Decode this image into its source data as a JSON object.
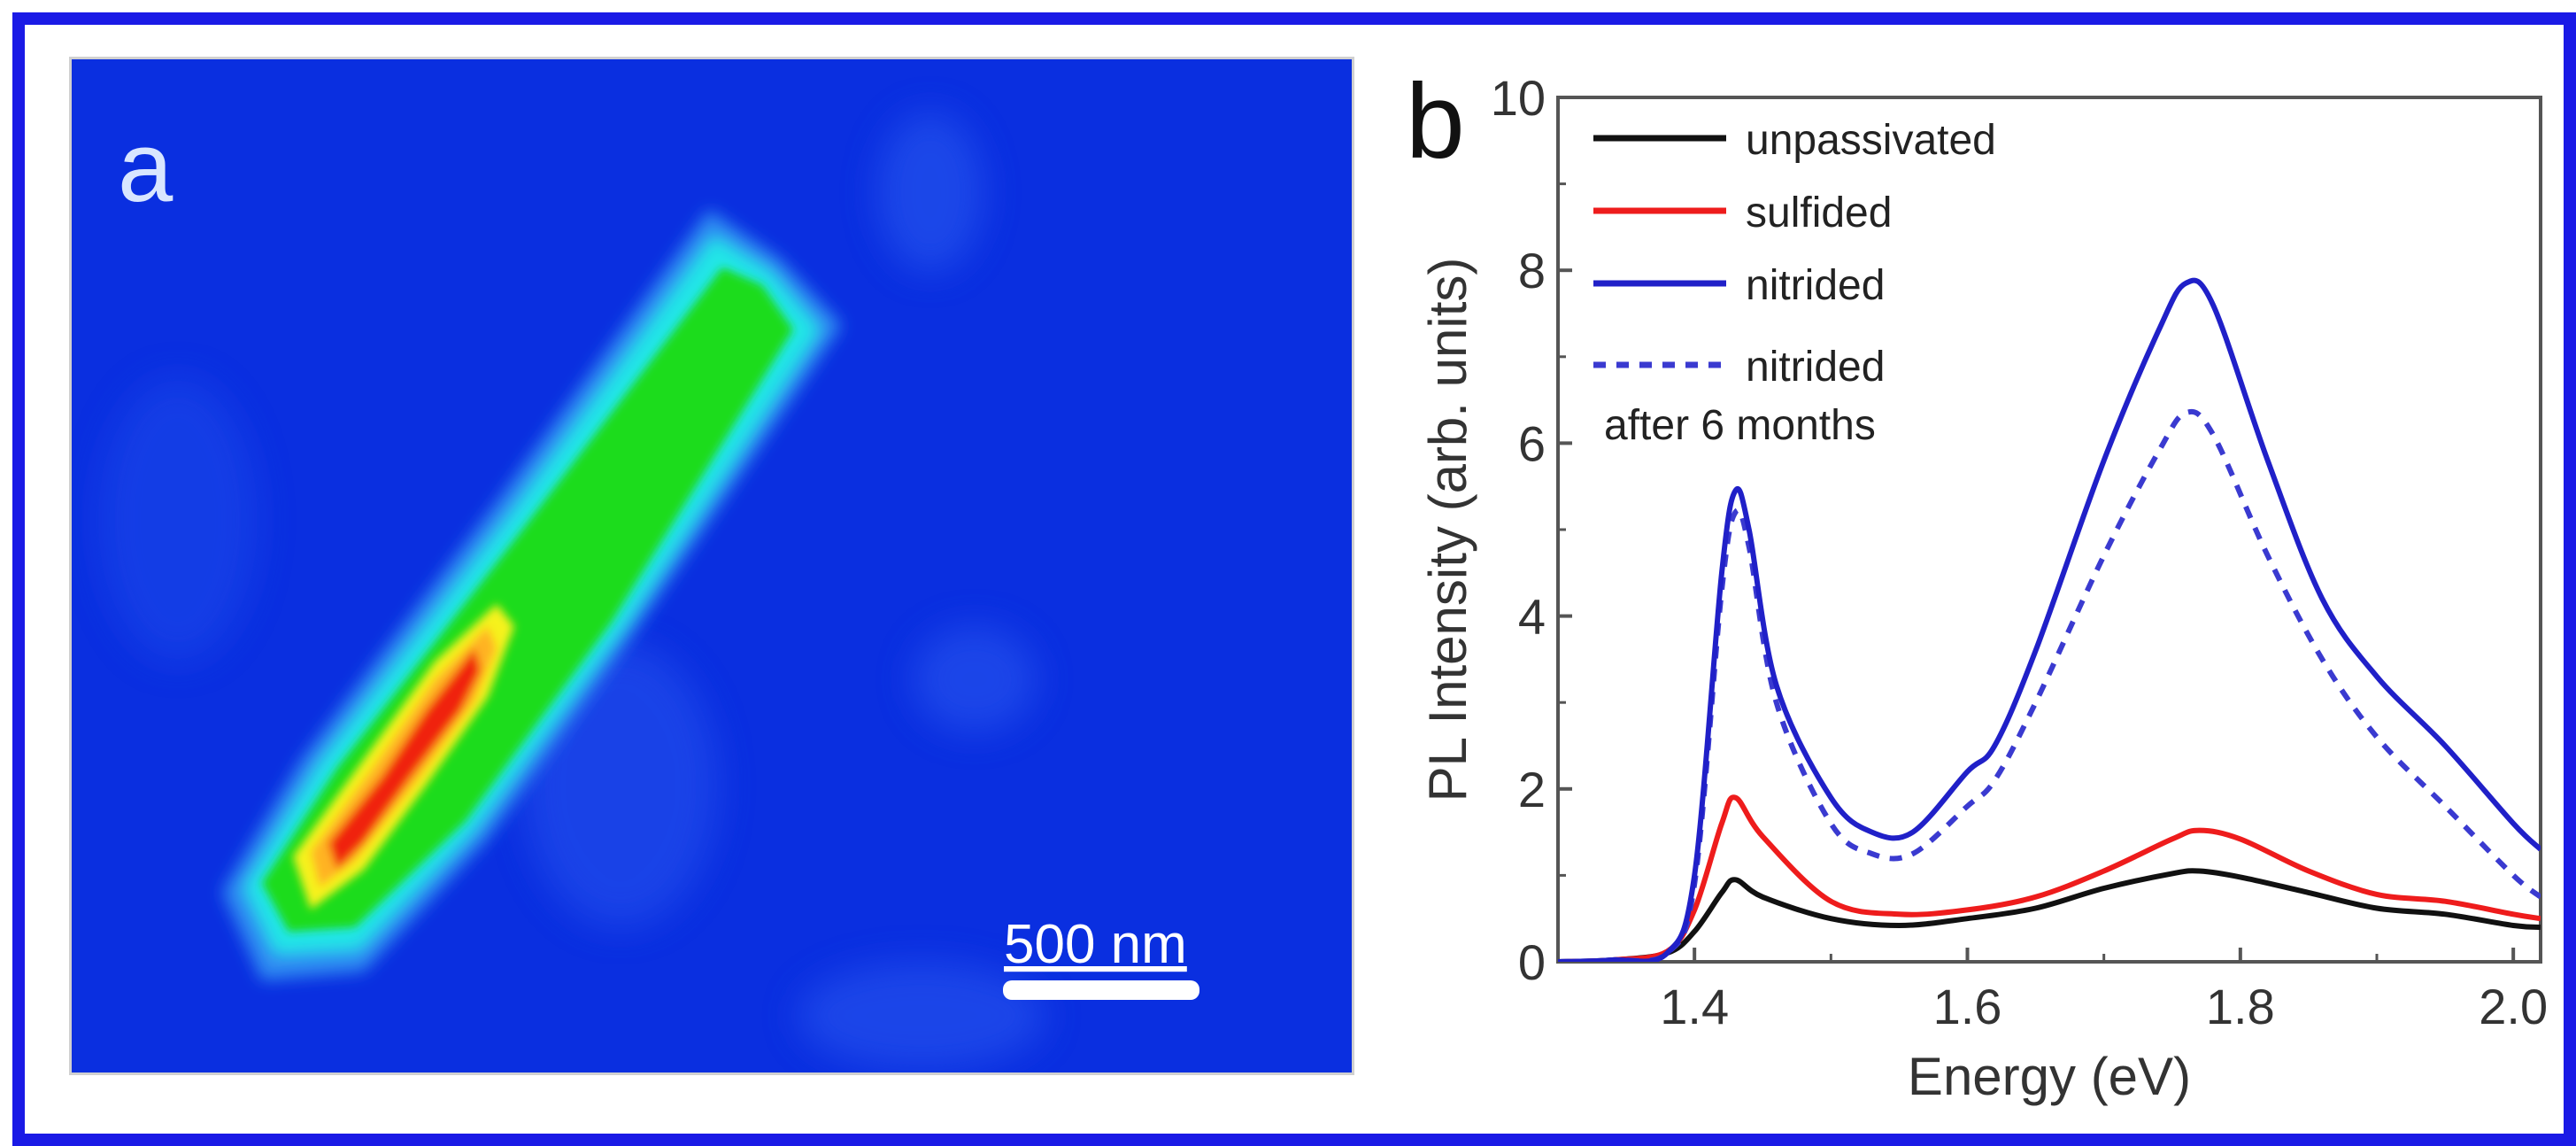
{
  "panel_a": {
    "label": "a",
    "scale_bar_label": "500 nm",
    "colors": {
      "background": "#0a2fe0",
      "green": "#1fdc1f",
      "yellow": "#f6f21a",
      "red": "#f0200e",
      "cyan": "#22e6e6"
    }
  },
  "panel_b": {
    "label": "b"
  },
  "chart_data": {
    "type": "line",
    "title": "",
    "xlabel": "Energy (eV)",
    "ylabel": "PL Intensity (arb. units)",
    "xlim": [
      1.3,
      2.02
    ],
    "ylim": [
      0,
      10
    ],
    "x_ticks": [
      "1.4",
      "1.6",
      "1.8",
      "2.0"
    ],
    "y_ticks": [
      "0",
      "2",
      "4",
      "6",
      "8",
      "10"
    ],
    "legend_position": "top-left",
    "series": [
      {
        "name": "unpassivated",
        "color": "#111111",
        "style": "solid",
        "points": [
          [
            1.3,
            0
          ],
          [
            1.34,
            0.02
          ],
          [
            1.38,
            0.1
          ],
          [
            1.4,
            0.35
          ],
          [
            1.42,
            0.8
          ],
          [
            1.43,
            0.95
          ],
          [
            1.45,
            0.75
          ],
          [
            1.5,
            0.5
          ],
          [
            1.55,
            0.42
          ],
          [
            1.6,
            0.5
          ],
          [
            1.65,
            0.62
          ],
          [
            1.7,
            0.85
          ],
          [
            1.75,
            1.02
          ],
          [
            1.77,
            1.05
          ],
          [
            1.8,
            0.98
          ],
          [
            1.85,
            0.8
          ],
          [
            1.9,
            0.62
          ],
          [
            1.95,
            0.55
          ],
          [
            2.0,
            0.42
          ],
          [
            2.02,
            0.4
          ]
        ]
      },
      {
        "name": "sulfided",
        "color": "#ee1c1c",
        "style": "solid",
        "points": [
          [
            1.3,
            0
          ],
          [
            1.34,
            0.02
          ],
          [
            1.38,
            0.12
          ],
          [
            1.4,
            0.6
          ],
          [
            1.42,
            1.6
          ],
          [
            1.43,
            1.9
          ],
          [
            1.45,
            1.45
          ],
          [
            1.5,
            0.7
          ],
          [
            1.55,
            0.55
          ],
          [
            1.6,
            0.6
          ],
          [
            1.65,
            0.75
          ],
          [
            1.7,
            1.05
          ],
          [
            1.75,
            1.42
          ],
          [
            1.77,
            1.52
          ],
          [
            1.8,
            1.42
          ],
          [
            1.85,
            1.05
          ],
          [
            1.9,
            0.78
          ],
          [
            1.95,
            0.7
          ],
          [
            2.0,
            0.55
          ],
          [
            2.02,
            0.5
          ]
        ]
      },
      {
        "name": "nitrided",
        "color": "#2020c8",
        "style": "solid",
        "points": [
          [
            1.3,
            0
          ],
          [
            1.34,
            0.02
          ],
          [
            1.38,
            0.1
          ],
          [
            1.4,
            1.0
          ],
          [
            1.42,
            4.5
          ],
          [
            1.43,
            5.45
          ],
          [
            1.44,
            5.0
          ],
          [
            1.46,
            3.2
          ],
          [
            1.5,
            1.9
          ],
          [
            1.53,
            1.5
          ],
          [
            1.56,
            1.5
          ],
          [
            1.6,
            2.2
          ],
          [
            1.62,
            2.5
          ],
          [
            1.65,
            3.6
          ],
          [
            1.7,
            5.8
          ],
          [
            1.74,
            7.3
          ],
          [
            1.76,
            7.85
          ],
          [
            1.78,
            7.6
          ],
          [
            1.82,
            5.8
          ],
          [
            1.86,
            4.2
          ],
          [
            1.9,
            3.3
          ],
          [
            1.95,
            2.5
          ],
          [
            2.0,
            1.6
          ],
          [
            2.02,
            1.3
          ]
        ]
      },
      {
        "name": "nitrided after 6 months",
        "legend_line1": "nitrided",
        "legend_line2": "after 6 months",
        "color": "#3a3ad0",
        "style": "dashed",
        "points": [
          [
            1.3,
            0
          ],
          [
            1.34,
            0.02
          ],
          [
            1.38,
            0.1
          ],
          [
            1.4,
            0.9
          ],
          [
            1.42,
            4.3
          ],
          [
            1.43,
            5.2
          ],
          [
            1.44,
            4.8
          ],
          [
            1.46,
            3.0
          ],
          [
            1.5,
            1.6
          ],
          [
            1.53,
            1.25
          ],
          [
            1.56,
            1.25
          ],
          [
            1.6,
            1.8
          ],
          [
            1.62,
            2.1
          ],
          [
            1.65,
            3.0
          ],
          [
            1.7,
            4.7
          ],
          [
            1.74,
            5.9
          ],
          [
            1.76,
            6.35
          ],
          [
            1.78,
            6.1
          ],
          [
            1.82,
            4.7
          ],
          [
            1.86,
            3.5
          ],
          [
            1.9,
            2.6
          ],
          [
            1.95,
            1.8
          ],
          [
            2.0,
            1.0
          ],
          [
            2.02,
            0.75
          ]
        ]
      }
    ]
  }
}
